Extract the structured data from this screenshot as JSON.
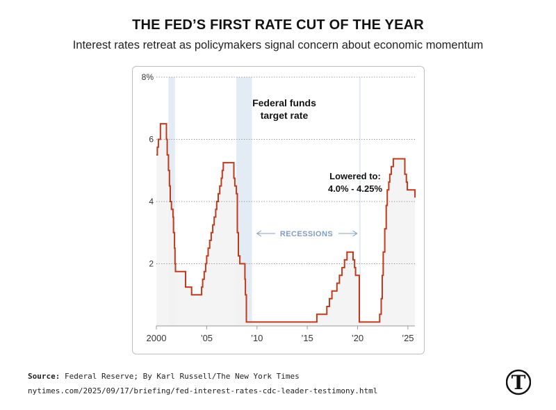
{
  "header": {
    "title": "THE FED’S FIRST RATE CUT OF THE YEAR",
    "subtitle": "Interest rates retreat as policymakers signal concern about economic momentum"
  },
  "footer": {
    "source_label": "Source:",
    "source_text": "Federal Reserve; By Karl Russell/The New York Times",
    "url": "nytimes.com/2025/09/17/briefing/fed-interest-rates-cdc-leader-testimony.html"
  },
  "logo": {
    "icon": "nyt-logo-icon",
    "glyph": "T"
  },
  "colors": {
    "line": "#c0391b",
    "area": "#f3f3f3",
    "recession": "#e3ebf5",
    "recession_label": "#7f9dc2",
    "grid": "#8a8a8a",
    "axis": "#9a9a9a"
  },
  "chart_data": {
    "type": "line",
    "title": "",
    "xlabel": "",
    "ylabel": "",
    "xlim": [
      2000,
      2025.7
    ],
    "ylim": [
      0,
      8
    ],
    "x_ticks": [
      {
        "value": 2000,
        "label": "2000"
      },
      {
        "value": 2005,
        "label": "’05"
      },
      {
        "value": 2010,
        "label": "’10"
      },
      {
        "value": 2015,
        "label": "’15"
      },
      {
        "value": 2020,
        "label": "’20"
      },
      {
        "value": 2025,
        "label": "’25"
      }
    ],
    "y_ticks": [
      {
        "value": 2,
        "label": "2"
      },
      {
        "value": 4,
        "label": "4"
      },
      {
        "value": 6,
        "label": "6"
      },
      {
        "value": 8,
        "label": "8%"
      }
    ],
    "grid": "horizontal dotted",
    "series": [
      {
        "name": "Federal funds target rate",
        "step": true,
        "points": [
          [
            2000.0,
            5.5
          ],
          [
            2000.1,
            5.75
          ],
          [
            2000.2,
            6.0
          ],
          [
            2000.4,
            6.5
          ],
          [
            2001.0,
            6.0
          ],
          [
            2001.08,
            5.5
          ],
          [
            2001.2,
            5.0
          ],
          [
            2001.3,
            4.5
          ],
          [
            2001.38,
            4.0
          ],
          [
            2001.5,
            3.75
          ],
          [
            2001.65,
            3.5
          ],
          [
            2001.7,
            3.0
          ],
          [
            2001.8,
            2.5
          ],
          [
            2001.85,
            2.0
          ],
          [
            2001.9,
            1.75
          ],
          [
            2002.9,
            1.25
          ],
          [
            2003.5,
            1.0
          ],
          [
            2004.5,
            1.25
          ],
          [
            2004.6,
            1.5
          ],
          [
            2004.75,
            1.75
          ],
          [
            2004.9,
            2.0
          ],
          [
            2005.0,
            2.25
          ],
          [
            2005.15,
            2.5
          ],
          [
            2005.3,
            2.75
          ],
          [
            2005.45,
            3.0
          ],
          [
            2005.6,
            3.25
          ],
          [
            2005.75,
            3.5
          ],
          [
            2005.9,
            3.75
          ],
          [
            2006.0,
            4.0
          ],
          [
            2006.15,
            4.25
          ],
          [
            2006.3,
            4.5
          ],
          [
            2006.45,
            4.75
          ],
          [
            2006.55,
            5.0
          ],
          [
            2006.65,
            5.25
          ],
          [
            2007.7,
            4.75
          ],
          [
            2007.8,
            4.5
          ],
          [
            2007.95,
            4.25
          ],
          [
            2008.05,
            3.0
          ],
          [
            2008.15,
            2.25
          ],
          [
            2008.3,
            2.0
          ],
          [
            2008.8,
            1.5
          ],
          [
            2008.85,
            1.0
          ],
          [
            2008.95,
            0.125
          ],
          [
            2015.95,
            0.375
          ],
          [
            2016.95,
            0.625
          ],
          [
            2017.2,
            0.875
          ],
          [
            2017.45,
            1.125
          ],
          [
            2017.95,
            1.375
          ],
          [
            2018.2,
            1.625
          ],
          [
            2018.45,
            1.875
          ],
          [
            2018.7,
            2.125
          ],
          [
            2018.95,
            2.375
          ],
          [
            2019.55,
            2.125
          ],
          [
            2019.7,
            1.875
          ],
          [
            2019.8,
            1.625
          ],
          [
            2020.17,
            0.125
          ],
          [
            2022.2,
            0.375
          ],
          [
            2022.35,
            0.875
          ],
          [
            2022.45,
            1.625
          ],
          [
            2022.55,
            2.375
          ],
          [
            2022.7,
            3.125
          ],
          [
            2022.85,
            3.875
          ],
          [
            2022.95,
            4.375
          ],
          [
            2023.1,
            4.625
          ],
          [
            2023.2,
            4.875
          ],
          [
            2023.35,
            5.125
          ],
          [
            2023.55,
            5.375
          ],
          [
            2024.7,
            4.875
          ],
          [
            2024.85,
            4.625
          ],
          [
            2024.95,
            4.375
          ],
          [
            2025.71,
            4.125
          ]
        ]
      }
    ],
    "recessions": [
      [
        2001.2,
        2001.85
      ],
      [
        2007.95,
        2009.5
      ],
      [
        2020.15,
        2020.3
      ]
    ],
    "annotations": [
      {
        "id": "series_label",
        "lines": [
          "Federal funds",
          "target rate"
        ]
      },
      {
        "id": "recessions_label",
        "text": "RECESSIONS"
      },
      {
        "id": "lowered_label",
        "lines": [
          "Lowered to:",
          "4.0% - 4.25%"
        ]
      }
    ]
  }
}
